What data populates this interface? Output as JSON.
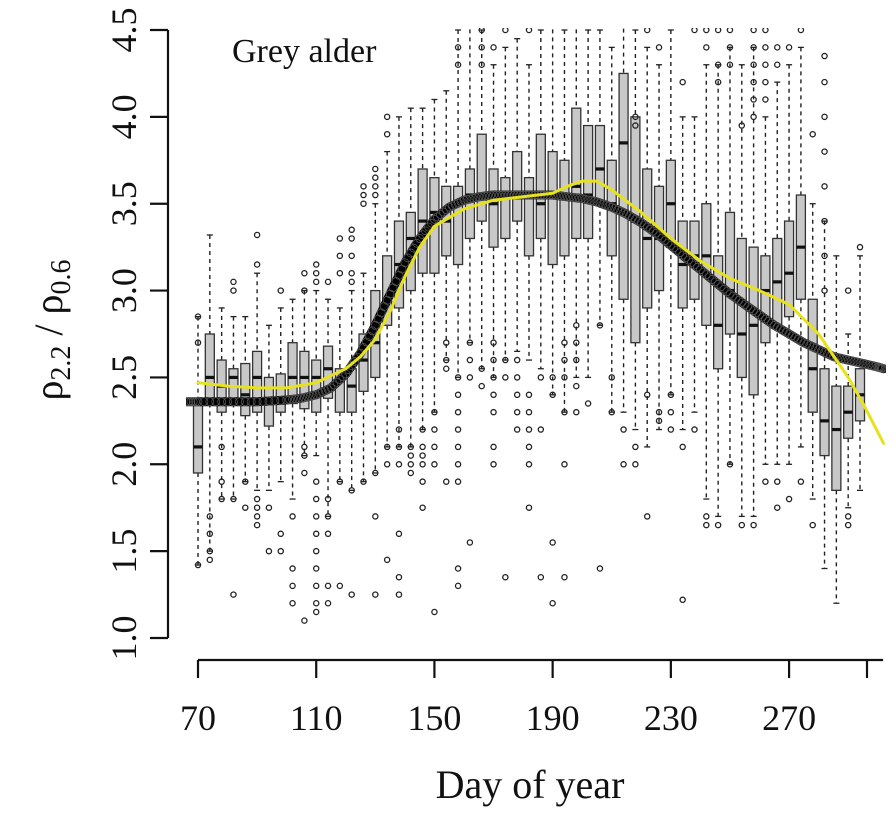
{
  "chart_data": {
    "type": "box",
    "title": "Grey alder",
    "xlabel": "Day of year",
    "ylabel_base": "ρ",
    "ylabel_sub1": "2.2",
    "ylabel_sep": " / ",
    "ylabel_base2": "ρ",
    "ylabel_sub2": "0.6",
    "xlim": [
      66,
      302
    ],
    "ylim": [
      1.0,
      4.5
    ],
    "x_ticks": [
      70,
      110,
      150,
      190,
      230,
      270
    ],
    "y_ticks": [
      1.0,
      1.5,
      2.0,
      2.5,
      3.0,
      3.5,
      4.0,
      4.5
    ],
    "y_tick_labels": [
      "1.0",
      "1.5",
      "2.0",
      "2.5",
      "3.0",
      "3.5",
      "4.0",
      "4.5"
    ],
    "boxes": [
      {
        "day": 70,
        "q1": 1.95,
        "median": 2.1,
        "q3": 2.35,
        "lo": 1.42,
        "hi": 2.85,
        "outliers": [
          1.42,
          2.7,
          2.85
        ]
      },
      {
        "day": 74,
        "q1": 2.35,
        "median": 2.5,
        "q3": 2.75,
        "lo": 1.5,
        "hi": 3.32,
        "outliers": [
          1.45,
          1.5,
          1.6,
          1.7
        ]
      },
      {
        "day": 78,
        "q1": 2.3,
        "median": 2.45,
        "q3": 2.6,
        "lo": 1.8,
        "hi": 2.9,
        "outliers": [
          1.8,
          1.9,
          2.1
        ]
      },
      {
        "day": 82,
        "q1": 2.35,
        "median": 2.5,
        "q3": 2.55,
        "lo": 1.8,
        "hi": 2.85,
        "outliers": [
          1.25,
          1.8,
          3.05,
          3.0
        ]
      },
      {
        "day": 86,
        "q1": 2.28,
        "median": 2.4,
        "q3": 2.58,
        "lo": 1.9,
        "hi": 2.85,
        "outliers": [
          1.9,
          1.75
        ]
      },
      {
        "day": 90,
        "q1": 2.3,
        "median": 2.5,
        "q3": 2.65,
        "lo": 1.85,
        "hi": 3.1,
        "outliers": [
          1.65,
          1.7,
          1.75,
          1.8,
          3.15,
          3.32
        ]
      },
      {
        "day": 94,
        "q1": 2.22,
        "median": 2.35,
        "q3": 2.5,
        "lo": 1.85,
        "hi": 2.8,
        "outliers": [
          1.5,
          1.75
        ]
      },
      {
        "day": 98,
        "q1": 2.3,
        "median": 2.38,
        "q3": 2.52,
        "lo": 1.9,
        "hi": 2.9,
        "outliers": [
          1.5,
          1.6,
          3.0
        ]
      },
      {
        "day": 102,
        "q1": 2.35,
        "median": 2.5,
        "q3": 2.7,
        "lo": 1.8,
        "hi": 2.95,
        "outliers": [
          1.2,
          1.3,
          1.4,
          1.7
        ]
      },
      {
        "day": 106,
        "q1": 2.32,
        "median": 2.5,
        "q3": 2.65,
        "lo": 2.05,
        "hi": 3.0,
        "outliers": [
          1.1,
          1.95,
          2.05,
          2.1,
          3.0,
          3.1
        ]
      },
      {
        "day": 110,
        "q1": 2.3,
        "median": 2.5,
        "q3": 2.6,
        "lo": 2.05,
        "hi": 3.0,
        "outliers": [
          1.15,
          1.2,
          1.3,
          1.4,
          1.5,
          1.6,
          1.7,
          1.8,
          1.9,
          3.05,
          3.1,
          3.15
        ]
      },
      {
        "day": 114,
        "q1": 2.38,
        "median": 2.55,
        "q3": 2.68,
        "lo": 1.7,
        "hi": 2.95,
        "outliers": [
          1.2,
          1.3,
          1.6,
          1.7,
          1.8,
          3.05
        ]
      },
      {
        "day": 118,
        "q1": 2.3,
        "median": 2.48,
        "q3": 2.55,
        "lo": 1.9,
        "hi": 2.9,
        "outliers": [
          1.3,
          1.9,
          3.1,
          3.2,
          3.3
        ]
      },
      {
        "day": 122,
        "q1": 2.3,
        "median": 2.45,
        "q3": 2.55,
        "lo": 1.85,
        "hi": 3.0,
        "outliers": [
          1.25,
          1.85,
          3.05,
          3.1,
          3.2,
          3.3,
          3.35
        ]
      },
      {
        "day": 126,
        "q1": 2.42,
        "median": 2.6,
        "q3": 2.75,
        "lo": 1.9,
        "hi": 3.1,
        "outliers": [
          1.9,
          3.5,
          3.55,
          3.6
        ]
      },
      {
        "day": 130,
        "q1": 2.5,
        "median": 2.7,
        "q3": 3.0,
        "lo": 1.95,
        "hi": 3.5,
        "outliers": [
          1.25,
          1.7,
          1.95,
          3.55,
          3.6,
          3.65,
          3.7
        ]
      },
      {
        "day": 134,
        "q1": 2.8,
        "median": 2.95,
        "q3": 3.2,
        "lo": 2.1,
        "hi": 3.8,
        "outliers": [
          1.45,
          2.0,
          2.1,
          3.9,
          4.0
        ]
      },
      {
        "day": 138,
        "q1": 2.9,
        "median": 3.15,
        "q3": 3.4,
        "lo": 2.1,
        "hi": 4.0,
        "outliers": [
          1.25,
          1.35,
          1.6,
          2.0,
          2.1,
          2.2
        ]
      },
      {
        "day": 142,
        "q1": 3.0,
        "median": 3.3,
        "q3": 3.45,
        "lo": 2.1,
        "hi": 4.05,
        "outliers": [
          1.95,
          2.0,
          2.05,
          2.1
        ]
      },
      {
        "day": 146,
        "q1": 3.1,
        "median": 3.4,
        "q3": 3.7,
        "lo": 2.2,
        "hi": 4.05,
        "outliers": [
          1.75,
          1.9,
          2.0,
          2.05,
          2.1,
          2.2
        ]
      },
      {
        "day": 150,
        "q1": 3.1,
        "median": 3.45,
        "q3": 3.65,
        "lo": 2.3,
        "hi": 4.1,
        "outliers": [
          1.15,
          2.0,
          2.1,
          2.2,
          2.3
        ]
      },
      {
        "day": 154,
        "q1": 3.2,
        "median": 3.4,
        "q3": 3.6,
        "lo": 2.6,
        "hi": 4.15,
        "outliers": [
          1.9,
          2.55,
          2.6,
          2.7
        ]
      },
      {
        "day": 158,
        "q1": 3.15,
        "median": 3.5,
        "q3": 3.6,
        "lo": 2.5,
        "hi": 4.5,
        "outliers": [
          1.3,
          1.4,
          1.9,
          2.0,
          2.1,
          2.2,
          2.3,
          2.4,
          2.5,
          4.3,
          4.4
        ]
      },
      {
        "day": 162,
        "q1": 3.3,
        "median": 3.55,
        "q3": 3.7,
        "lo": 2.7,
        "hi": 4.55,
        "outliers": [
          1.55,
          2.5,
          2.6,
          2.7,
          4.55,
          4.6
        ]
      },
      {
        "day": 166,
        "q1": 3.4,
        "median": 3.55,
        "q3": 3.9,
        "lo": 2.55,
        "hi": 4.5,
        "outliers": [
          2.45,
          2.55,
          4.3,
          4.4,
          4.5
        ]
      },
      {
        "day": 170,
        "q1": 3.25,
        "median": 3.5,
        "q3": 3.7,
        "lo": 2.5,
        "hi": 4.3,
        "outliers": [
          2.0,
          2.1,
          2.3,
          2.4,
          2.5,
          2.6,
          2.7,
          4.4
        ]
      },
      {
        "day": 174,
        "q1": 3.3,
        "median": 3.55,
        "q3": 3.65,
        "lo": 2.6,
        "hi": 4.4,
        "outliers": [
          1.35,
          2.5,
          2.6,
          4.5
        ]
      },
      {
        "day": 178,
        "q1": 3.4,
        "median": 3.55,
        "q3": 3.8,
        "lo": 2.65,
        "hi": 4.45,
        "outliers": [
          2.2,
          2.3,
          2.4,
          2.5,
          2.6,
          4.6
        ]
      },
      {
        "day": 182,
        "q1": 3.2,
        "median": 3.55,
        "q3": 3.65,
        "lo": 2.6,
        "hi": 4.3,
        "outliers": [
          1.75,
          2.0,
          2.1,
          2.2,
          2.3,
          2.4,
          4.5
        ]
      },
      {
        "day": 186,
        "q1": 3.3,
        "median": 3.5,
        "q3": 3.9,
        "lo": 2.55,
        "hi": 4.5,
        "outliers": [
          1.35,
          2.2,
          2.5
        ]
      },
      {
        "day": 190,
        "q1": 3.15,
        "median": 3.55,
        "q3": 3.8,
        "lo": 2.4,
        "hi": 4.55,
        "outliers": [
          1.2,
          1.55,
          2.4,
          2.5,
          4.6
        ]
      },
      {
        "day": 194,
        "q1": 3.2,
        "median": 3.55,
        "q3": 3.75,
        "lo": 2.3,
        "hi": 4.5,
        "outliers": [
          1.35,
          2.0,
          2.3,
          2.5,
          2.6,
          2.7
        ]
      },
      {
        "day": 198,
        "q1": 3.3,
        "median": 3.6,
        "q3": 4.05,
        "lo": 2.5,
        "hi": 4.55,
        "outliers": [
          2.3,
          2.45,
          2.6,
          2.7,
          2.8
        ]
      },
      {
        "day": 202,
        "q1": 3.3,
        "median": 3.55,
        "q3": 3.95,
        "lo": 2.5,
        "hi": 4.5,
        "outliers": [
          2.35,
          4.55
        ]
      },
      {
        "day": 206,
        "q1": 3.5,
        "median": 3.7,
        "q3": 3.95,
        "lo": 2.8,
        "hi": 4.5,
        "outliers": [
          1.4,
          2.8,
          4.55
        ]
      },
      {
        "day": 210,
        "q1": 3.2,
        "median": 3.5,
        "q3": 3.75,
        "lo": 2.3,
        "hi": 4.4,
        "outliers": [
          2.3,
          2.5
        ]
      },
      {
        "day": 214,
        "q1": 2.95,
        "median": 3.85,
        "q3": 4.25,
        "lo": 2.3,
        "hi": 4.6,
        "outliers": [
          2.0,
          2.2
        ]
      },
      {
        "day": 218,
        "q1": 2.7,
        "median": 3.4,
        "q3": 4.0,
        "lo": 2.2,
        "hi": 4.5,
        "outliers": [
          2.0,
          2.1,
          3.95,
          4.0
        ]
      },
      {
        "day": 222,
        "q1": 2.9,
        "median": 3.3,
        "q3": 3.7,
        "lo": 2.1,
        "hi": 4.4,
        "outliers": [
          1.7,
          2.4,
          4.5
        ]
      },
      {
        "day": 226,
        "q1": 3.0,
        "median": 3.3,
        "q3": 3.6,
        "lo": 2.2,
        "hi": 4.3,
        "outliers": [
          2.25,
          2.3,
          4.4
        ]
      },
      {
        "day": 230,
        "q1": 3.25,
        "median": 3.5,
        "q3": 3.75,
        "lo": 2.4,
        "hi": 4.5,
        "outliers": [
          2.2,
          2.3,
          2.4,
          4.6,
          4.65
        ]
      },
      {
        "day": 234,
        "q1": 2.9,
        "median": 3.15,
        "q3": 3.4,
        "lo": 2.2,
        "hi": 4.0,
        "outliers": [
          1.22,
          2.1,
          4.2
        ]
      },
      {
        "day": 238,
        "q1": 2.95,
        "median": 3.2,
        "q3": 3.4,
        "lo": 2.3,
        "hi": 4.0,
        "outliers": [
          2.2,
          4.5
        ]
      },
      {
        "day": 242,
        "q1": 2.8,
        "median": 3.2,
        "q3": 3.5,
        "lo": 1.8,
        "hi": 4.3,
        "outliers": [
          1.65,
          1.7,
          4.4,
          4.5,
          4.6
        ]
      },
      {
        "day": 246,
        "q1": 2.55,
        "median": 2.8,
        "q3": 3.2,
        "lo": 1.7,
        "hi": 4.3,
        "outliers": [
          1.65,
          4.2,
          4.3,
          4.5
        ]
      },
      {
        "day": 250,
        "q1": 2.75,
        "median": 3.0,
        "q3": 3.45,
        "lo": 2.0,
        "hi": 4.4,
        "outliers": [
          2.0,
          4.3,
          4.4,
          4.5
        ]
      },
      {
        "day": 254,
        "q1": 2.5,
        "median": 2.75,
        "q3": 3.3,
        "lo": 1.7,
        "hi": 4.3,
        "outliers": [
          1.65,
          3.95
        ]
      },
      {
        "day": 258,
        "q1": 2.4,
        "median": 2.8,
        "q3": 3.25,
        "lo": 1.7,
        "hi": 4.4,
        "outliers": [
          1.65,
          4.0,
          4.1,
          4.2,
          4.3,
          4.4,
          4.5
        ]
      },
      {
        "day": 262,
        "q1": 2.7,
        "median": 3.0,
        "q3": 3.2,
        "lo": 2.0,
        "hi": 4.0,
        "outliers": [
          1.9,
          4.1,
          4.2,
          4.3,
          4.4,
          4.5,
          4.6
        ]
      },
      {
        "day": 266,
        "q1": 2.8,
        "median": 3.05,
        "q3": 3.3,
        "lo": 2.0,
        "hi": 4.2,
        "outliers": [
          1.75,
          1.9,
          4.3,
          4.4
        ]
      },
      {
        "day": 270,
        "q1": 2.85,
        "median": 3.1,
        "q3": 3.4,
        "lo": 2.0,
        "hi": 4.3,
        "outliers": [
          1.8,
          4.4
        ]
      },
      {
        "day": 274,
        "q1": 2.95,
        "median": 3.25,
        "q3": 3.55,
        "lo": 2.1,
        "hi": 4.4,
        "outliers": [
          1.9,
          4.5
        ]
      },
      {
        "day": 278,
        "q1": 2.3,
        "median": 2.55,
        "q3": 2.95,
        "lo": 1.8,
        "hi": 3.5,
        "outliers": [
          1.65,
          3.9
        ]
      },
      {
        "day": 282,
        "q1": 2.05,
        "median": 2.25,
        "q3": 2.55,
        "lo": 1.4,
        "hi": 3.4,
        "outliers": [
          3.0,
          3.2,
          3.4,
          3.6,
          3.8,
          4.0,
          4.2,
          4.35
        ]
      },
      {
        "day": 286,
        "q1": 1.85,
        "median": 2.2,
        "q3": 2.45,
        "lo": 1.2,
        "hi": 3.2,
        "outliers": []
      },
      {
        "day": 290,
        "q1": 2.15,
        "median": 2.3,
        "q3": 2.45,
        "lo": 1.75,
        "hi": 2.75,
        "outliers": [
          1.65,
          1.7,
          3.0
        ]
      },
      {
        "day": 294,
        "q1": 2.25,
        "median": 2.4,
        "q3": 2.55,
        "lo": 1.85,
        "hi": 3.2,
        "outliers": [
          3.25
        ]
      }
    ],
    "smooth_fit": {
      "color": "#000000",
      "x": [
        66,
        70,
        80,
        90,
        100,
        105,
        110,
        115,
        120,
        125,
        130,
        135,
        140,
        145,
        150,
        155,
        160,
        165,
        170,
        175,
        180,
        185,
        190,
        195,
        200,
        205,
        210,
        215,
        220,
        225,
        230,
        235,
        240,
        245,
        250,
        255,
        260,
        265,
        270,
        275,
        280,
        285,
        290,
        295,
        300,
        302
      ],
      "y": [
        2.36,
        2.36,
        2.36,
        2.36,
        2.37,
        2.38,
        2.4,
        2.44,
        2.52,
        2.64,
        2.8,
        2.98,
        3.16,
        3.3,
        3.41,
        3.48,
        3.52,
        3.54,
        3.55,
        3.55,
        3.55,
        3.55,
        3.55,
        3.54,
        3.53,
        3.51,
        3.48,
        3.44,
        3.39,
        3.33,
        3.26,
        3.19,
        3.12,
        3.05,
        2.98,
        2.92,
        2.86,
        2.8,
        2.75,
        2.7,
        2.66,
        2.62,
        2.6,
        2.58,
        2.56,
        2.55
      ]
    },
    "yellow_fit": {
      "color": "#e6e21c",
      "x": [
        70,
        80,
        90,
        100,
        110,
        120,
        125,
        130,
        135,
        140,
        145,
        150,
        160,
        170,
        180,
        190,
        195,
        200,
        205,
        210,
        220,
        230,
        240,
        250,
        260,
        270,
        280,
        290,
        295,
        302
      ],
      "y": [
        2.47,
        2.45,
        2.44,
        2.44,
        2.47,
        2.55,
        2.62,
        2.72,
        2.88,
        3.08,
        3.25,
        3.37,
        3.47,
        3.52,
        3.54,
        3.56,
        3.6,
        3.63,
        3.63,
        3.58,
        3.45,
        3.3,
        3.17,
        3.07,
        3.0,
        2.92,
        2.75,
        2.5,
        2.35,
        2.12
      ]
    }
  }
}
